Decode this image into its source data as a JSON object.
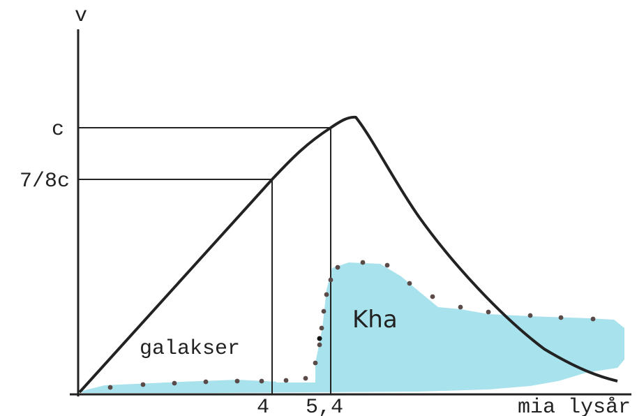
{
  "axes": {
    "y_label": "v",
    "x_label": "mia lysår"
  },
  "y_ticks": {
    "c": "c",
    "seven_eighths_c": "7/8c"
  },
  "x_ticks": {
    "four": "4",
    "five_four": "5,4"
  },
  "annotations": {
    "galaxies": "galakser",
    "region": "Kha"
  },
  "colors": {
    "ink": "#222222",
    "region_fill": "#a8e2ec",
    "dot": "#5a4a48"
  }
}
